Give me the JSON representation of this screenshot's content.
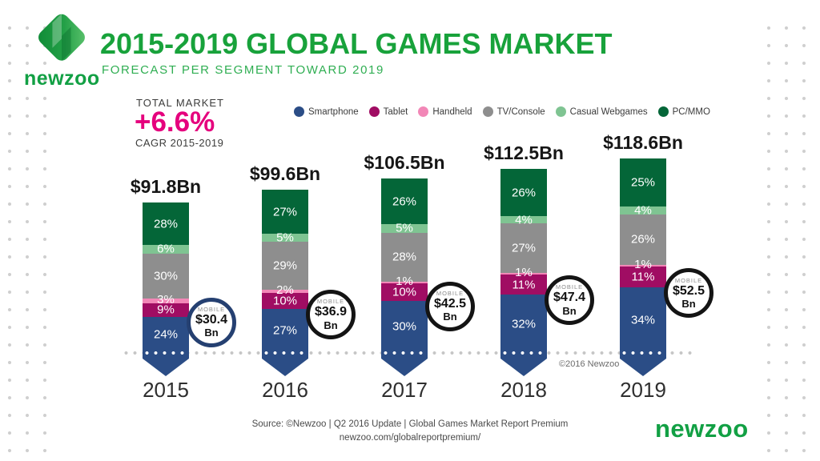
{
  "header": {
    "title": "2015-2019 GLOBAL GAMES MARKET",
    "subtitle": "FORECAST PER SEGMENT TOWARD 2019",
    "logo_text": "newzoo",
    "brand_green": "#18a23b"
  },
  "total_market": {
    "label": "TOTAL MARKET",
    "value": "+6.6%",
    "sublabel": "CAGR 2015-2019",
    "accent_color": "#e5007d"
  },
  "legend": {
    "items": [
      {
        "label": "Smartphone",
        "color": "#2b4d86"
      },
      {
        "label": "Tablet",
        "color": "#a00d63"
      },
      {
        "label": "Handheld",
        "color": "#f287b7"
      },
      {
        "label": "TV/Console",
        "color": "#8e8e8e"
      },
      {
        "label": "Casual Webgames",
        "color": "#7fc492"
      },
      {
        "label": "PC/MMO",
        "color": "#046638"
      }
    ]
  },
  "chart_data": {
    "type": "bar",
    "stacked": true,
    "orientation": "vertical",
    "title": "2015-2019 GLOBAL GAMES MARKET",
    "categories": [
      "2015",
      "2016",
      "2017",
      "2018",
      "2019"
    ],
    "totals_bn": [
      91.8,
      99.6,
      106.5,
      112.5,
      118.6
    ],
    "total_labels": [
      "$91.8Bn",
      "$99.6Bn",
      "$106.5Bn",
      "$112.5Bn",
      "$118.6Bn"
    ],
    "value_unit": "percent of total market",
    "series_top_to_bottom": [
      {
        "name": "PC/MMO",
        "color": "#046638",
        "values_pct": [
          28,
          27,
          26,
          26,
          25
        ]
      },
      {
        "name": "Casual Webgames",
        "color": "#7fc492",
        "values_pct": [
          6,
          5,
          5,
          4,
          4
        ]
      },
      {
        "name": "TV/Console",
        "color": "#8e8e8e",
        "values_pct": [
          30,
          29,
          28,
          27,
          26
        ]
      },
      {
        "name": "Handheld",
        "color": "#f287b7",
        "values_pct": [
          3,
          2,
          1,
          1,
          1
        ]
      },
      {
        "name": "Tablet",
        "color": "#a00d63",
        "values_pct": [
          9,
          10,
          10,
          11,
          11
        ]
      },
      {
        "name": "Smartphone",
        "color": "#2b4d86",
        "values_pct": [
          24,
          27,
          30,
          32,
          34
        ]
      }
    ],
    "mobile_badges": {
      "tag": "MOBILE",
      "unit": "Bn",
      "values_bn": [
        30.4,
        36.9,
        42.5,
        47.4,
        52.5
      ],
      "value_labels": [
        "$30.4",
        "$36.9",
        "$42.5",
        "$47.4",
        "$52.5"
      ],
      "border_colors": [
        "#254071",
        "#141414",
        "#141414",
        "#141414",
        "#141414"
      ]
    },
    "legend_position": "top",
    "grid": false
  },
  "annotations": {
    "copyright": "©2016 Newzoo"
  },
  "footer": {
    "source_line1": "Source: ©Newzoo | Q2 2016 Update | Global Games Market Report Premium",
    "source_line2": "newzoo.com/globalreportpremium/",
    "brand": "newzoo"
  }
}
